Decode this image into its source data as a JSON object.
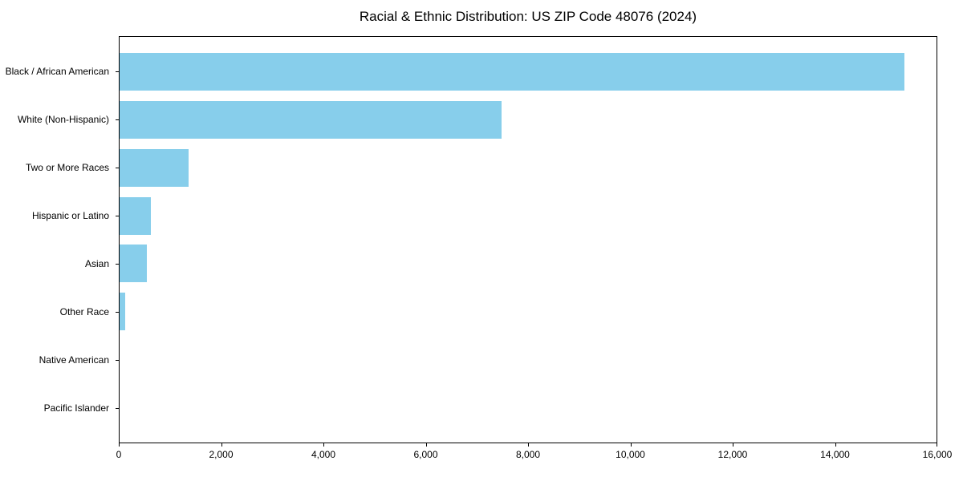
{
  "title": "Racial & Ethnic Distribution: US ZIP Code 48076 (2024)",
  "colors": {
    "bar": "#87CEEB",
    "axis": "#000000",
    "background": "#FFFFFF",
    "text": "#000000"
  },
  "chart_data": {
    "type": "bar",
    "orientation": "horizontal",
    "title": "Racial & Ethnic Distribution: US ZIP Code 48076 (2024)",
    "xlabel": "",
    "ylabel": "",
    "categories": [
      "Black / African American",
      "White (Non-Hispanic)",
      "Two or More Races",
      "Hispanic or Latino",
      "Asian",
      "Other Race",
      "Native American",
      "Pacific Islander"
    ],
    "values": [
      15370,
      7480,
      1350,
      610,
      530,
      110,
      0,
      0
    ],
    "xlim": [
      0,
      16000
    ],
    "xticks": [
      0,
      2000,
      4000,
      6000,
      8000,
      10000,
      12000,
      14000,
      16000
    ],
    "xtick_labels": [
      "0",
      "2,000",
      "4,000",
      "6,000",
      "8,000",
      "10,000",
      "12,000",
      "14,000",
      "16,000"
    ],
    "grid": false,
    "legend": null,
    "bar_color": "#87CEEB"
  }
}
